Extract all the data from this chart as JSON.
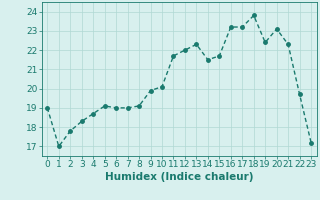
{
  "x": [
    0,
    1,
    2,
    3,
    4,
    5,
    6,
    7,
    8,
    9,
    10,
    11,
    12,
    13,
    14,
    15,
    16,
    17,
    18,
    19,
    20,
    21,
    22,
    23
  ],
  "y": [
    19.0,
    17.0,
    17.8,
    18.3,
    18.7,
    19.1,
    19.0,
    19.0,
    19.1,
    19.9,
    20.1,
    21.7,
    22.0,
    22.3,
    21.5,
    21.7,
    23.2,
    23.2,
    23.8,
    22.4,
    23.1,
    22.3,
    19.7,
    17.2
  ],
  "line_color": "#1a7a6e",
  "bg_color": "#d8f0ee",
  "grid_color": "#b0d8d4",
  "xlabel": "Humidex (Indice chaleur)",
  "ylim": [
    16.5,
    24.5
  ],
  "xlim": [
    -0.5,
    23.5
  ],
  "yticks": [
    17,
    18,
    19,
    20,
    21,
    22,
    23,
    24
  ],
  "xticks": [
    0,
    1,
    2,
    3,
    4,
    5,
    6,
    7,
    8,
    9,
    10,
    11,
    12,
    13,
    14,
    15,
    16,
    17,
    18,
    19,
    20,
    21,
    22,
    23
  ],
  "marker_size": 2.5,
  "line_width": 1.0,
  "tick_fontsize": 6.5,
  "xlabel_fontsize": 7.5
}
